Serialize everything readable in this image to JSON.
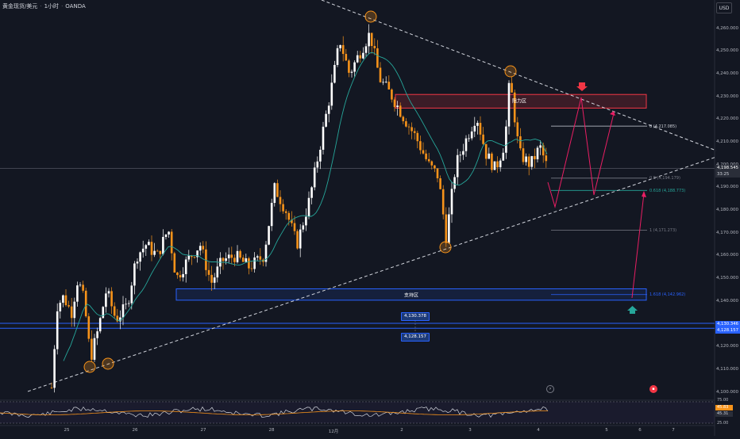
{
  "header": {
    "symbol": "黄金现货/美元",
    "interval": "1小时",
    "exchange": "OANDA"
  },
  "currency_button": "USD",
  "y_axis": {
    "ticks": [
      "4,260.000",
      "4,250.000",
      "4,240.000",
      "4,230.000",
      "4,220.000",
      "4,210.000",
      "4,200.000",
      "4,190.000",
      "4,180.000",
      "4,170.000",
      "4,160.000",
      "4,150.000",
      "4,140.000",
      "4,130.000",
      "4,120.000",
      "4,110.000",
      "4,100.000"
    ],
    "range": [
      4100,
      4266
    ]
  },
  "x_axis": {
    "ticks": [
      "25",
      "26",
      "27",
      "28",
      "12月",
      "2",
      "3",
      "4",
      "5",
      "6",
      "7"
    ]
  },
  "price_tags": {
    "last_price": "4,198.545",
    "countdown": "33:25",
    "upper_level": "4,130.346",
    "lower_level": "4,128.157"
  },
  "zones": {
    "resistance_label": "阻力区",
    "support_label": "支持区"
  },
  "fib_labels": {
    "f0": "0 (4,217.085)",
    "f05": "0.5 (4,194.179)",
    "f0618": "0.618 (4,188.773)",
    "f1": "1 (4,171.273)",
    "f1618": "1.618 (4,142.962)"
  },
  "box_labels": {
    "upper": "4,130.378",
    "lower": "4,128.157"
  },
  "rsi": {
    "tick_upper": "75.00",
    "tick_lower": "25.00",
    "value_1": "45.83",
    "value_2": "45.31"
  },
  "colors": {
    "background": "#131722",
    "up_candle": "#ffffff",
    "down_candle": "#f7931a",
    "ma_line": "#26a69a",
    "resistance": "#f23645",
    "support": "#2962ff",
    "projection": "#e91e63"
  },
  "chart_data": {
    "type": "candlestick",
    "title": "黄金现货/美元 · 1小时 · OANDA",
    "ylim": [
      4100,
      4266
    ],
    "price_path": [
      {
        "x": 65,
        "close": 4102
      },
      {
        "x": 72,
        "close": 4138
      },
      {
        "x": 80,
        "close": 4142
      },
      {
        "x": 90,
        "close": 4135
      },
      {
        "x": 98,
        "close": 4150
      },
      {
        "x": 106,
        "close": 4140
      },
      {
        "x": 114,
        "close": 4115
      },
      {
        "x": 124,
        "close": 4128
      },
      {
        "x": 134,
        "close": 4145
      },
      {
        "x": 146,
        "close": 4132
      },
      {
        "x": 160,
        "close": 4138
      },
      {
        "x": 172,
        "close": 4160
      },
      {
        "x": 184,
        "close": 4165
      },
      {
        "x": 198,
        "close": 4160
      },
      {
        "x": 212,
        "close": 4172
      },
      {
        "x": 222,
        "close": 4150
      },
      {
        "x": 236,
        "close": 4158
      },
      {
        "x": 252,
        "close": 4165
      },
      {
        "x": 266,
        "close": 4148
      },
      {
        "x": 280,
        "close": 4158
      },
      {
        "x": 296,
        "close": 4160
      },
      {
        "x": 314,
        "close": 4155
      },
      {
        "x": 332,
        "close": 4160
      },
      {
        "x": 346,
        "close": 4190
      },
      {
        "x": 360,
        "close": 4180
      },
      {
        "x": 374,
        "close": 4165
      },
      {
        "x": 390,
        "close": 4185
      },
      {
        "x": 404,
        "close": 4210
      },
      {
        "x": 418,
        "close": 4235
      },
      {
        "x": 428,
        "close": 4255
      },
      {
        "x": 440,
        "close": 4240
      },
      {
        "x": 454,
        "close": 4250
      },
      {
        "x": 466,
        "close": 4258
      },
      {
        "x": 478,
        "close": 4238
      },
      {
        "x": 494,
        "close": 4230
      },
      {
        "x": 510,
        "close": 4220
      },
      {
        "x": 524,
        "close": 4212
      },
      {
        "x": 540,
        "close": 4200
      },
      {
        "x": 552,
        "close": 4195
      },
      {
        "x": 562,
        "close": 4168
      },
      {
        "x": 574,
        "close": 4200
      },
      {
        "x": 588,
        "close": 4212
      },
      {
        "x": 600,
        "close": 4222
      },
      {
        "x": 612,
        "close": 4205
      },
      {
        "x": 624,
        "close": 4198
      },
      {
        "x": 636,
        "close": 4210
      },
      {
        "x": 642,
        "close": 4238
      },
      {
        "x": 654,
        "close": 4205
      },
      {
        "x": 668,
        "close": 4200
      },
      {
        "x": 680,
        "close": 4208
      },
      {
        "x": 690,
        "close": 4198
      }
    ],
    "annotations": {
      "resistance_zone": [
        4225,
        4231
      ],
      "support_zone": [
        4140.5,
        4145.5
      ],
      "fib_levels": {
        "0": 4217.085,
        "0.5": 4194.179,
        "0.618": 4188.773,
        "1": 4171.273,
        "1.618": 4142.962
      },
      "horizontal_levels": [
        4130.346,
        4128.157
      ],
      "last_price": 4198.545
    }
  }
}
